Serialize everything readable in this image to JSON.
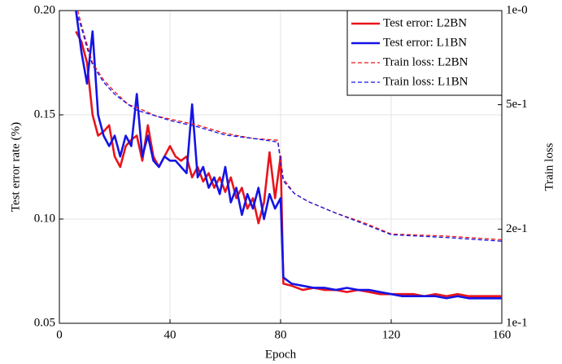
{
  "chart_data": {
    "type": "line",
    "xlabel": "Epoch",
    "ylabel": "Test error rate (%)",
    "y2label": "Train loss",
    "xlim": [
      0,
      160
    ],
    "xticks": [
      0,
      40,
      80,
      120,
      160
    ],
    "ylim": [
      0.05,
      0.2
    ],
    "yticks": [
      0.05,
      {
        "value": 0.1,
        "label": "0.10"
      },
      0.15,
      {
        "value": 0.2,
        "label": "0.20"
      }
    ],
    "y2lim": [
      0.1,
      1
    ],
    "y2scale": "log",
    "y2ticks": [
      {
        "value": 0.1,
        "label": "1e-1"
      },
      {
        "value": 0.2,
        "label": "2e-1"
      },
      {
        "value": 0.5,
        "label": "5e-1"
      },
      {
        "value": 1,
        "label": "1e-0"
      }
    ],
    "grid": true,
    "legend": "upper right",
    "series": [
      {
        "name": "Test error: L2BN",
        "color": "#e8141c",
        "dash": "solid",
        "x": [
          6,
          8,
          10,
          12,
          14,
          16,
          18,
          20,
          22,
          24,
          26,
          28,
          30,
          32,
          34,
          36,
          38,
          40,
          42,
          44,
          46,
          48,
          50,
          52,
          54,
          56,
          58,
          60,
          62,
          64,
          66,
          68,
          70,
          72,
          74,
          76,
          78,
          80,
          81,
          84,
          88,
          92,
          96,
          100,
          104,
          108,
          112,
          116,
          120,
          124,
          128,
          132,
          136,
          140,
          144,
          148,
          152,
          156,
          160
        ],
        "values": [
          0.19,
          0.185,
          0.175,
          0.15,
          0.14,
          0.142,
          0.145,
          0.13,
          0.125,
          0.135,
          0.138,
          0.14,
          0.128,
          0.145,
          0.13,
          0.125,
          0.13,
          0.135,
          0.13,
          0.128,
          0.13,
          0.12,
          0.125,
          0.118,
          0.122,
          0.115,
          0.12,
          0.113,
          0.12,
          0.11,
          0.115,
          0.105,
          0.11,
          0.098,
          0.108,
          0.132,
          0.11,
          0.13,
          0.069,
          0.068,
          0.066,
          0.067,
          0.066,
          0.066,
          0.065,
          0.066,
          0.065,
          0.064,
          0.064,
          0.064,
          0.064,
          0.063,
          0.064,
          0.063,
          0.064,
          0.063,
          0.063,
          0.063,
          0.063
        ]
      },
      {
        "name": "Test error: L1BN",
        "color": "#1414e6",
        "dash": "solid",
        "x": [
          6,
          8,
          10,
          12,
          14,
          16,
          18,
          20,
          22,
          24,
          26,
          28,
          30,
          32,
          34,
          36,
          38,
          40,
          42,
          44,
          46,
          48,
          50,
          52,
          54,
          56,
          58,
          60,
          62,
          64,
          66,
          68,
          70,
          72,
          74,
          76,
          78,
          80,
          81,
          84,
          88,
          92,
          96,
          100,
          104,
          108,
          112,
          116,
          120,
          124,
          128,
          132,
          136,
          140,
          144,
          148,
          152,
          156,
          160
        ],
        "values": [
          0.2,
          0.18,
          0.165,
          0.19,
          0.15,
          0.14,
          0.135,
          0.14,
          0.13,
          0.14,
          0.135,
          0.16,
          0.13,
          0.14,
          0.128,
          0.125,
          0.13,
          0.128,
          0.128,
          0.125,
          0.122,
          0.155,
          0.12,
          0.125,
          0.115,
          0.12,
          0.112,
          0.125,
          0.108,
          0.115,
          0.102,
          0.112,
          0.105,
          0.115,
          0.1,
          0.112,
          0.105,
          0.11,
          0.072,
          0.069,
          0.068,
          0.067,
          0.067,
          0.066,
          0.067,
          0.066,
          0.066,
          0.065,
          0.064,
          0.063,
          0.063,
          0.063,
          0.063,
          0.062,
          0.063,
          0.062,
          0.062,
          0.062,
          0.062
        ]
      },
      {
        "name": "Train loss: L2BN",
        "color": "#e8141c",
        "dash": "dashed",
        "axis": "y2",
        "x": [
          6,
          8,
          10,
          12,
          16,
          20,
          25,
          28,
          35,
          40,
          50,
          60,
          70,
          79,
          81,
          85,
          90,
          100,
          110,
          120,
          140,
          160
        ],
        "values": [
          1.05,
          0.9,
          0.78,
          0.68,
          0.6,
          0.55,
          0.5,
          0.49,
          0.46,
          0.45,
          0.43,
          0.405,
          0.39,
          0.385,
          0.29,
          0.26,
          0.245,
          0.225,
          0.21,
          0.193,
          0.19,
          0.185
        ]
      },
      {
        "name": "Train loss: L1BN",
        "color": "#1414e6",
        "dash": "dashed",
        "axis": "y2",
        "x": [
          6,
          8,
          10,
          12,
          16,
          20,
          25,
          28,
          35,
          40,
          50,
          60,
          70,
          79,
          81,
          85,
          90,
          100,
          110,
          120,
          140,
          160
        ],
        "values": [
          1.0,
          0.88,
          0.76,
          0.67,
          0.59,
          0.54,
          0.5,
          0.48,
          0.46,
          0.445,
          0.425,
          0.4,
          0.39,
          0.38,
          0.285,
          0.26,
          0.245,
          0.225,
          0.208,
          0.192,
          0.188,
          0.183
        ]
      }
    ]
  }
}
